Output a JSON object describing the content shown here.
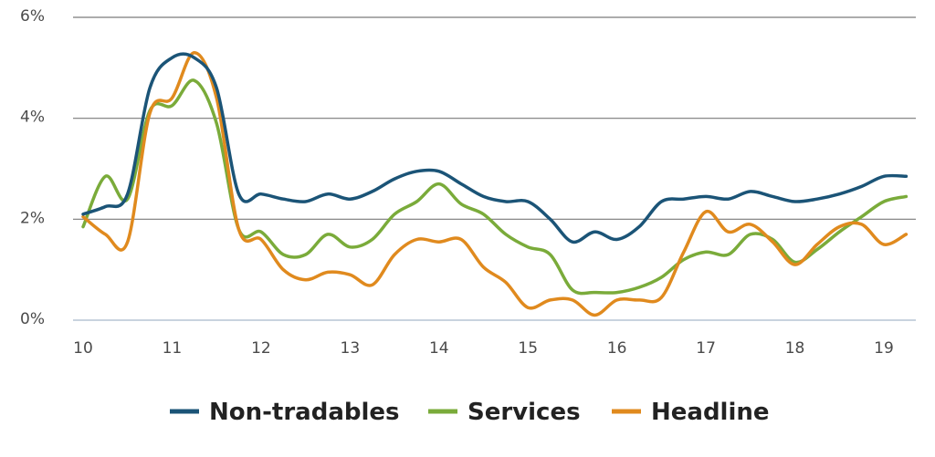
{
  "chart_data": {
    "type": "line",
    "xlim": [
      10,
      19.25
    ],
    "ylim": [
      0,
      6
    ],
    "x_ticks": [
      {
        "value": 10,
        "label": "10"
      },
      {
        "value": 11,
        "label": "11"
      },
      {
        "value": 12,
        "label": "12"
      },
      {
        "value": 13,
        "label": "13"
      },
      {
        "value": 14,
        "label": "14"
      },
      {
        "value": 15,
        "label": "15"
      },
      {
        "value": 16,
        "label": "16"
      },
      {
        "value": 17,
        "label": "17"
      },
      {
        "value": 18,
        "label": "18"
      },
      {
        "value": 19,
        "label": "19"
      }
    ],
    "y_ticks": [
      {
        "value": 0,
        "label": "0%"
      },
      {
        "value": 2,
        "label": "2%"
      },
      {
        "value": 4,
        "label": "4%"
      },
      {
        "value": 6,
        "label": "6%"
      }
    ],
    "grid": "horizontal",
    "legend_position": "bottom",
    "series": [
      {
        "name": "Non-tradables",
        "color": "#1b5477",
        "x": [
          10.0,
          10.25,
          10.5,
          10.75,
          11.0,
          11.25,
          11.5,
          11.75,
          12.0,
          12.25,
          12.5,
          12.75,
          13.0,
          13.25,
          13.5,
          13.75,
          14.0,
          14.25,
          14.5,
          14.75,
          15.0,
          15.25,
          15.5,
          15.75,
          16.0,
          16.25,
          16.5,
          16.75,
          17.0,
          17.25,
          17.5,
          17.75,
          18.0,
          18.25,
          18.5,
          18.75,
          19.0,
          19.25
        ],
        "values": [
          2.1,
          2.25,
          2.5,
          4.6,
          5.2,
          5.2,
          4.6,
          2.5,
          2.5,
          2.4,
          2.35,
          2.5,
          2.4,
          2.55,
          2.8,
          2.95,
          2.95,
          2.7,
          2.45,
          2.35,
          2.35,
          2.0,
          1.55,
          1.75,
          1.6,
          1.85,
          2.35,
          2.4,
          2.45,
          2.4,
          2.55,
          2.45,
          2.35,
          2.4,
          2.5,
          2.65,
          2.85,
          2.85
        ]
      },
      {
        "name": "Services",
        "color": "#7aab3a",
        "x": [
          10.0,
          10.25,
          10.5,
          10.75,
          11.0,
          11.25,
          11.5,
          11.75,
          12.0,
          12.25,
          12.5,
          12.75,
          13.0,
          13.25,
          13.5,
          13.75,
          14.0,
          14.25,
          14.5,
          14.75,
          15.0,
          15.25,
          15.5,
          15.75,
          16.0,
          16.25,
          16.5,
          16.75,
          17.0,
          17.25,
          17.5,
          17.75,
          18.0,
          18.25,
          18.5,
          18.75,
          19.0,
          19.25
        ],
        "values": [
          1.85,
          2.85,
          2.4,
          4.15,
          4.25,
          4.75,
          3.9,
          1.8,
          1.75,
          1.3,
          1.3,
          1.7,
          1.45,
          1.6,
          2.1,
          2.35,
          2.7,
          2.3,
          2.1,
          1.7,
          1.45,
          1.3,
          0.6,
          0.55,
          0.55,
          0.65,
          0.85,
          1.2,
          1.35,
          1.3,
          1.7,
          1.6,
          1.15,
          1.4,
          1.75,
          2.05,
          2.35,
          2.45
        ]
      },
      {
        "name": "Headline",
        "color": "#e08a1e",
        "x": [
          10.0,
          10.25,
          10.5,
          10.75,
          11.0,
          11.25,
          11.5,
          11.75,
          12.0,
          12.25,
          12.5,
          12.75,
          13.0,
          13.25,
          13.5,
          13.75,
          14.0,
          14.25,
          14.5,
          14.75,
          15.0,
          15.25,
          15.5,
          15.75,
          16.0,
          16.25,
          16.5,
          16.75,
          17.0,
          17.25,
          17.5,
          17.75,
          18.0,
          18.25,
          18.5,
          18.75,
          19.0,
          19.25
        ],
        "values": [
          2.05,
          1.7,
          1.55,
          4.1,
          4.4,
          5.3,
          4.4,
          1.8,
          1.6,
          1.0,
          0.8,
          0.95,
          0.9,
          0.7,
          1.3,
          1.6,
          1.55,
          1.6,
          1.05,
          0.75,
          0.25,
          0.4,
          0.4,
          0.1,
          0.4,
          0.4,
          0.45,
          1.35,
          2.15,
          1.75,
          1.9,
          1.55,
          1.1,
          1.5,
          1.85,
          1.9,
          1.5,
          1.7
        ]
      }
    ]
  }
}
